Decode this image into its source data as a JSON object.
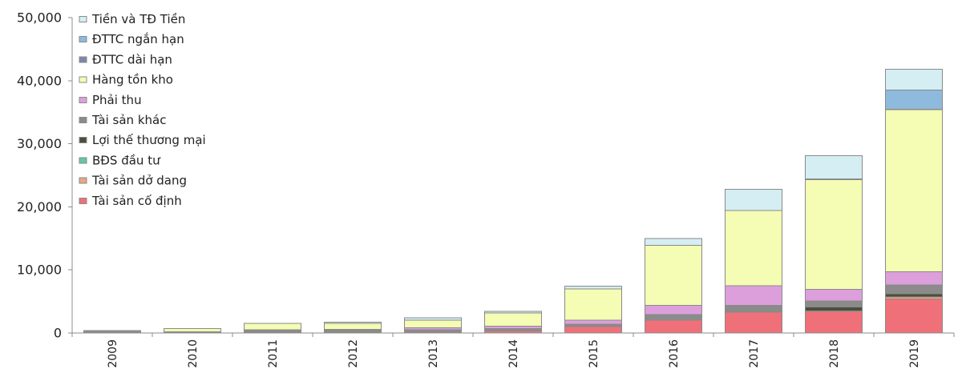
{
  "chart_data": {
    "type": "bar",
    "stacked": true,
    "grid": false,
    "legend_position": "top-left",
    "categories": [
      "2009",
      "2010",
      "2011",
      "2012",
      "2013",
      "2014",
      "2015",
      "2016",
      "2017",
      "2018",
      "2019"
    ],
    "ylim": [
      0,
      50000
    ],
    "yticks": [
      0,
      10000,
      20000,
      30000,
      40000,
      50000
    ],
    "ytick_labels": [
      "0",
      "10,000",
      "20,000",
      "30,000",
      "40,000",
      "50,000"
    ],
    "series": [
      {
        "name": "Tiền và TĐ Tiền",
        "color": "#d4eef3",
        "values": [
          0,
          0,
          0,
          200,
          400,
          200,
          400,
          1100,
          3400,
          3700,
          3300
        ]
      },
      {
        "name": "ĐTTC ngắn hạn",
        "color": "#8dbadd",
        "values": [
          0,
          0,
          0,
          0,
          0,
          0,
          0,
          0,
          0,
          0,
          3000
        ]
      },
      {
        "name": "ĐTTC dài hạn",
        "color": "#7d88a8",
        "values": [
          0,
          0,
          0,
          0,
          0,
          0,
          0,
          0,
          0,
          100,
          100
        ]
      },
      {
        "name": "Hàng tồn kho",
        "color": "#f5fcb4",
        "values": [
          100,
          500,
          1000,
          900,
          1200,
          2100,
          5000,
          9500,
          11900,
          17400,
          25700
        ]
      },
      {
        "name": "Phải thu",
        "color": "#dd9fdc",
        "values": [
          0,
          0,
          0,
          100,
          300,
          400,
          600,
          1500,
          3100,
          1800,
          2100
        ]
      },
      {
        "name": "Tài sản khác",
        "color": "#8b8b8b",
        "values": [
          250,
          150,
          400,
          400,
          400,
          400,
          300,
          800,
          1000,
          1000,
          1400
        ]
      },
      {
        "name": "Lợi thế thương mại",
        "color": "#4a4f3a",
        "values": [
          0,
          0,
          0,
          0,
          0,
          0,
          0,
          0,
          0,
          600,
          500
        ]
      },
      {
        "name": "BĐS đầu tư",
        "color": "#5fcaa0",
        "values": [
          0,
          0,
          0,
          0,
          0,
          0,
          0,
          0,
          0,
          0,
          0
        ]
      },
      {
        "name": "Tài sản dở dang",
        "color": "#e8a781",
        "values": [
          0,
          0,
          0,
          0,
          0,
          0,
          100,
          100,
          100,
          100,
          300
        ]
      },
      {
        "name": "Tài sản cố định",
        "color": "#ef7079",
        "values": [
          50,
          50,
          100,
          100,
          100,
          300,
          1000,
          2000,
          3300,
          3400,
          5400
        ]
      }
    ]
  }
}
